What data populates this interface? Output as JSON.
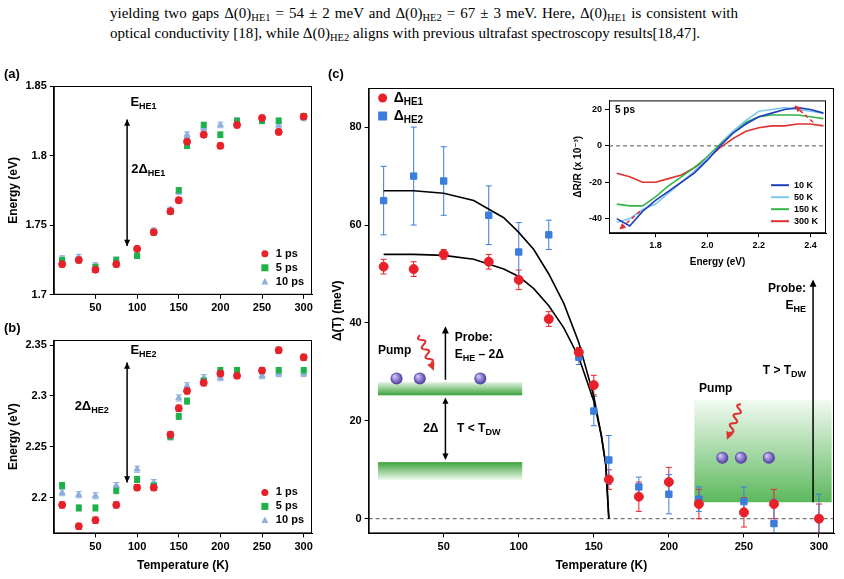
{
  "paragraph": [
    "yielding two gaps Δ(0)",
    {
      "sub": "HE1"
    },
    " = 54 ± 2 meV and Δ(0)",
    {
      "sub": "HE2"
    },
    " = 67 ± 3 meV. Here, Δ(0)",
    {
      "sub": "HE1"
    },
    " is consistent with optical conductivity [18], while Δ(0)",
    {
      "sub": "HE2"
    },
    " aligns with previous ultrafast spectroscopy results[18,47]."
  ],
  "chart_data": [
    {
      "panel": "(a)",
      "type": "scatter",
      "y_label": "Energy (eV)",
      "xlim": [
        0,
        310
      ],
      "xticks": [
        50,
        100,
        150,
        200,
        250,
        300
      ],
      "ylim": [
        1.7,
        1.85
      ],
      "yticks": [
        1.7,
        1.75,
        1.8,
        1.85
      ],
      "grid": false,
      "legend": "lower right",
      "x": [
        10,
        30,
        50,
        75,
        100,
        120,
        140,
        150,
        160,
        180,
        200,
        220,
        250,
        270,
        300
      ],
      "series": [
        {
          "name": "1 ps",
          "color": "#e8202a",
          "marker": "circle",
          "values": [
            1.722,
            1.725,
            1.718,
            1.722,
            1.733,
            1.745,
            1.76,
            1.768,
            1.81,
            1.815,
            1.807,
            1.822,
            1.827,
            1.817,
            1.828
          ],
          "errors": [
            0.002,
            0.002,
            0.002,
            0.002,
            0.002,
            0.002,
            0.002,
            0.002,
            0.002,
            0.002,
            0.002,
            0.002,
            0.002,
            0.002,
            0.002
          ]
        },
        {
          "name": "5 ps",
          "color": "#1fb04a",
          "marker": "square",
          "values": [
            1.725,
            1.725,
            1.72,
            1.725,
            1.728,
            1.745,
            1.76,
            1.775,
            1.807,
            1.822,
            1.815,
            1.825,
            1.825,
            1.825,
            1.828
          ],
          "errors": [
            0.002,
            0.002,
            0.002,
            0.002,
            0.002,
            0.002,
            0.002,
            0.002,
            0.002,
            0.002,
            0.002,
            0.002,
            0.002,
            0.002,
            0.002
          ]
        },
        {
          "name": "10 ps",
          "color": "#8fb0dc",
          "marker": "triangle",
          "values": [
            1.726,
            1.727,
            1.721,
            1.725,
            1.729,
            1.746,
            1.761,
            1.774,
            1.815,
            1.82,
            1.822,
            1.825,
            1.826,
            1.822,
            1.827
          ],
          "errors": [
            0.002,
            0.002,
            0.002,
            0.002,
            0.002,
            0.002,
            0.002,
            0.002,
            0.002,
            0.002,
            0.002,
            0.002,
            0.002,
            0.002,
            0.002
          ]
        }
      ],
      "annotations": [
        {
          "type": "text",
          "text": [
            "E",
            {
              "sub": "HE1"
            }
          ],
          "x": 92,
          "y": 1.838
        },
        {
          "type": "double_arrow",
          "x": 88,
          "y": [
            1.735,
            1.826
          ]
        },
        {
          "type": "text",
          "text": [
            "2Δ",
            {
              "sub": "HE1"
            }
          ],
          "x": 93,
          "y": 1.79
        }
      ]
    },
    {
      "panel": "(b)",
      "type": "scatter",
      "x_label": "Temperature (K)",
      "y_label": "Energy (eV)",
      "xlim": [
        0,
        310
      ],
      "xticks": [
        50,
        100,
        150,
        200,
        250,
        300
      ],
      "ylim": [
        2.165,
        2.355
      ],
      "yticks": [
        2.2,
        2.25,
        2.3,
        2.35
      ],
      "grid": false,
      "legend": "lower right",
      "x": [
        10,
        30,
        50,
        75,
        100,
        120,
        140,
        150,
        160,
        180,
        200,
        220,
        250,
        270,
        300
      ],
      "series": [
        {
          "name": "1 ps",
          "color": "#e8202a",
          "marker": "circle",
          "values": [
            2.193,
            2.172,
            2.178,
            2.193,
            2.21,
            2.21,
            2.262,
            2.288,
            2.305,
            2.313,
            2.322,
            2.32,
            2.325,
            2.345,
            2.338
          ],
          "errors": [
            0.003,
            0.003,
            0.003,
            0.003,
            0.003,
            0.003,
            0.003,
            0.003,
            0.003,
            0.003,
            0.003,
            0.003,
            0.003,
            0.003,
            0.003
          ]
        },
        {
          "name": "5 ps",
          "color": "#1fb04a",
          "marker": "square",
          "values": [
            2.212,
            2.19,
            2.19,
            2.207,
            2.218,
            2.212,
            2.26,
            2.28,
            2.295,
            2.315,
            2.325,
            2.325,
            2.325,
            2.325,
            2.325
          ],
          "errors": [
            0.003,
            0.003,
            0.003,
            0.003,
            0.003,
            0.003,
            0.003,
            0.003,
            0.003,
            0.003,
            0.003,
            0.003,
            0.003,
            0.003,
            0.003
          ]
        },
        {
          "name": "10 ps",
          "color": "#8fb0dc",
          "marker": "triangle",
          "values": [
            2.205,
            2.203,
            2.202,
            2.212,
            2.228,
            2.215,
            2.26,
            2.298,
            2.31,
            2.318,
            2.318,
            2.322,
            2.32,
            2.322,
            2.322
          ],
          "errors": [
            0.003,
            0.003,
            0.003,
            0.003,
            0.003,
            0.003,
            0.003,
            0.003,
            0.003,
            0.003,
            0.003,
            0.003,
            0.003,
            0.003,
            0.003
          ]
        }
      ],
      "annotations": [
        {
          "type": "text",
          "text": [
            "E",
            {
              "sub": "HE2"
            }
          ],
          "x": 92,
          "y": 2.345
        },
        {
          "type": "double_arrow",
          "x": 88,
          "y": [
            2.215,
            2.333
          ]
        },
        {
          "type": "text",
          "text": [
            "2Δ",
            {
              "sub": "HE2"
            }
          ],
          "x": 25,
          "y": 2.29
        }
      ]
    },
    {
      "panel": "(c)",
      "type": "scatter",
      "x_label": "Temperature (K)",
      "y_label": "Δ(T) (meV)",
      "xlim": [
        0,
        310
      ],
      "xticks": [
        50,
        100,
        150,
        200,
        250,
        300
      ],
      "ylim": [
        -3,
        88
      ],
      "yticks": [
        0,
        20,
        40,
        60,
        80
      ],
      "grid": false,
      "legend": "upper left",
      "series": [
        {
          "name": [
            "Δ",
            {
              "sub": "HE1"
            }
          ],
          "color": "#e8202a",
          "marker": "circle",
          "x": [
            10,
            30,
            50,
            80,
            100,
            120,
            140,
            150,
            160,
            180,
            200,
            220,
            250,
            270,
            300
          ],
          "values": [
            51.5,
            51,
            54,
            52.5,
            48.8,
            40.8,
            34,
            27.3,
            8,
            4.5,
            7.5,
            3,
            1.3,
            3,
            0
          ],
          "errors": [
            1.5,
            1.5,
            1,
            1.5,
            2,
            1.5,
            1,
            2,
            2,
            3,
            3,
            3,
            3,
            3,
            3
          ]
        },
        {
          "name": [
            "Δ",
            {
              "sub": "HE2"
            }
          ],
          "color": "#3b7ddd",
          "marker": "square",
          "x": [
            10,
            30,
            50,
            80,
            100,
            120,
            140,
            150,
            160,
            180,
            200,
            220,
            250,
            270,
            300
          ],
          "values": [
            65,
            70,
            69,
            62,
            54.5,
            58,
            33,
            22,
            12,
            6.5,
            5,
            4,
            3.5,
            -1,
            0
          ],
          "errors": [
            7,
            10,
            7,
            6,
            6,
            3,
            1.5,
            3,
            5,
            2,
            4,
            2.5,
            3,
            5,
            5
          ]
        },
        {
          "type": "line",
          "color": "#000000",
          "x": [
            10,
            30,
            50,
            70,
            90,
            100,
            110,
            120,
            130,
            140,
            150,
            155,
            158,
            160
          ],
          "values": [
            54,
            54,
            53.8,
            53,
            51,
            49.5,
            47,
            43.5,
            39,
            33,
            24,
            17,
            11,
            0
          ]
        },
        {
          "type": "line",
          "color": "#000000",
          "x": [
            10,
            30,
            50,
            70,
            90,
            100,
            110,
            120,
            130,
            140,
            150,
            155,
            158,
            160
          ],
          "values": [
            67,
            67,
            66.5,
            65,
            61.5,
            58.5,
            55,
            50,
            44,
            36,
            25,
            17,
            11,
            0
          ]
        }
      ],
      "annotations": [
        {
          "type": "hline",
          "y": 0
        }
      ],
      "schematic": {
        "below": {
          "pump": "Pump",
          "probe": [
            "Probe:",
            [
              "E",
              {
                "sub": "HE"
              },
              " – 2Δ"
            ]
          ],
          "gap": "2Δ",
          "state": [
            "T < T",
            {
              "sub": "DW"
            }
          ]
        },
        "above": {
          "pump": "Pump",
          "probe": [
            "Probe:",
            [
              "E",
              {
                "sub": "HE"
              }
            ]
          ],
          "state": [
            "T > T",
            {
              "sub": "DW"
            }
          ]
        }
      }
    },
    {
      "type": "scatter",
      "title": "5 ps",
      "x_label": "Energy (eV)",
      "y_label": "ΔR/R (x 10⁻³)",
      "xlim": [
        1.62,
        2.46
      ],
      "xticks": [
        1.8,
        {
          "value": 2,
          "label": "2.0"
        },
        2.2,
        2.4
      ],
      "ylim": [
        -48,
        25
      ],
      "yticks": [
        -40,
        -20,
        0,
        20
      ],
      "grid": false,
      "legend": "lower right",
      "x": [
        1.65,
        1.7,
        1.75,
        1.8,
        1.85,
        1.9,
        1.95,
        2.0,
        2.05,
        2.1,
        2.15,
        2.2,
        2.25,
        2.3,
        2.35,
        2.4,
        2.45
      ],
      "series": [
        {
          "name": "10 K",
          "type": "line",
          "color": "#1f3fbf",
          "values": [
            -40,
            -44,
            -36,
            -30,
            -25,
            -20,
            -15,
            -8,
            0,
            7,
            12,
            16,
            18,
            20,
            21,
            20,
            18
          ]
        },
        {
          "name": "50 K",
          "type": "line",
          "color": "#7ec8f0",
          "values": [
            -42,
            -40,
            -35,
            -32,
            -26,
            -20,
            -14,
            -7,
            0,
            8,
            14,
            19,
            20,
            21,
            20,
            19,
            18
          ]
        },
        {
          "name": "150 K",
          "type": "line",
          "color": "#33b54a",
          "values": [
            -32,
            -33,
            -33,
            -28,
            -22,
            -17,
            -12,
            -6,
            1,
            8,
            13,
            16,
            17,
            17,
            17,
            16,
            15
          ]
        },
        {
          "name": "300 K",
          "type": "line",
          "color": "#e03030",
          "values": [
            -15,
            -17,
            -20,
            -20,
            -18,
            -16,
            -12,
            -7,
            -1,
            4,
            8,
            10,
            11,
            11,
            12,
            12,
            11
          ]
        }
      ],
      "annotations": [
        {
          "type": "hline",
          "y": 0
        },
        {
          "type": "arrow",
          "x": [
            1.74,
            1.66
          ],
          "y": [
            -36,
            -46
          ],
          "color": "#e03030",
          "line_style": "dashed"
        },
        {
          "type": "arrow",
          "x": [
            2.41,
            2.34
          ],
          "y": [
            13,
            22
          ],
          "color": "#e03030",
          "line_style": "dashed"
        }
      ]
    }
  ]
}
